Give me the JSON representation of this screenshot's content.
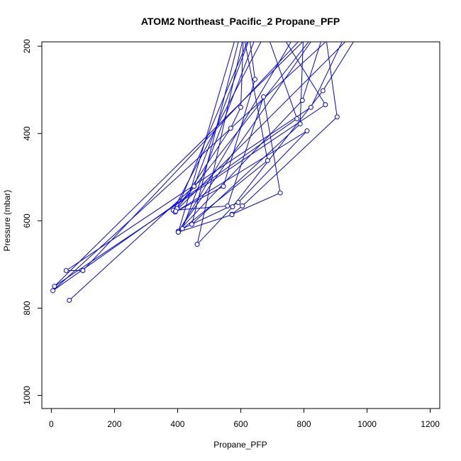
{
  "chart_data": {
    "type": "line",
    "title": "ATOM2 Northeast_Pacific_2 Propane_PFP",
    "xlabel": "Propane_PFP",
    "ylabel": "Pressure (mbar)",
    "xlim": [
      -30,
      1230
    ],
    "ylim": [
      1030,
      190
    ],
    "y_reversed": true,
    "xticks": [
      0,
      200,
      400,
      600,
      800,
      1000,
      1200
    ],
    "yticks": [
      200,
      400,
      600,
      800,
      1000
    ],
    "grid": false,
    "legend": "none",
    "colors": {
      "series": "#0000ff",
      "axis": "#000000"
    },
    "series": [
      {
        "points": [
          [
            57,
            782
          ],
          [
            452,
            521
          ],
          [
            650,
            140
          ],
          [
            398,
            572
          ],
          [
            880,
            130
          ],
          [
            402,
            624
          ],
          [
            795,
            324
          ],
          [
            880,
            130
          ],
          [
            10,
            750
          ],
          [
            868,
            334
          ],
          [
            700,
            140
          ],
          [
            386,
            576
          ],
          [
            558,
            566
          ],
          [
            672,
            316
          ],
          [
            725,
            536
          ],
          [
            572,
            585
          ],
          [
            605,
            566
          ],
          [
            905,
            362
          ],
          [
            860,
            130
          ],
          [
            100,
            714
          ],
          [
            47,
            714
          ],
          [
            822,
            340
          ],
          [
            960,
            130
          ],
          [
            5,
            760
          ],
          [
            778,
            366
          ],
          [
            668,
            140
          ],
          [
            415,
            618
          ],
          [
            592,
            558
          ],
          [
            810,
            394
          ],
          [
            392,
            580
          ],
          [
            545,
            521
          ],
          [
            645,
            276
          ],
          [
            620,
            140
          ],
          [
            462,
            654
          ],
          [
            574,
            568
          ],
          [
            860,
            302
          ],
          [
            1000,
            140
          ],
          [
            394,
            578
          ],
          [
            568,
            388
          ],
          [
            600,
            340
          ],
          [
            610,
            140
          ],
          [
            445,
            608
          ],
          [
            788,
            378
          ],
          [
            800,
            140
          ],
          [
            402,
            626
          ],
          [
            685,
            462
          ],
          [
            600,
            140
          ],
          [
            402,
            626
          ],
          [
            572,
            586
          ]
        ]
      }
    ]
  }
}
